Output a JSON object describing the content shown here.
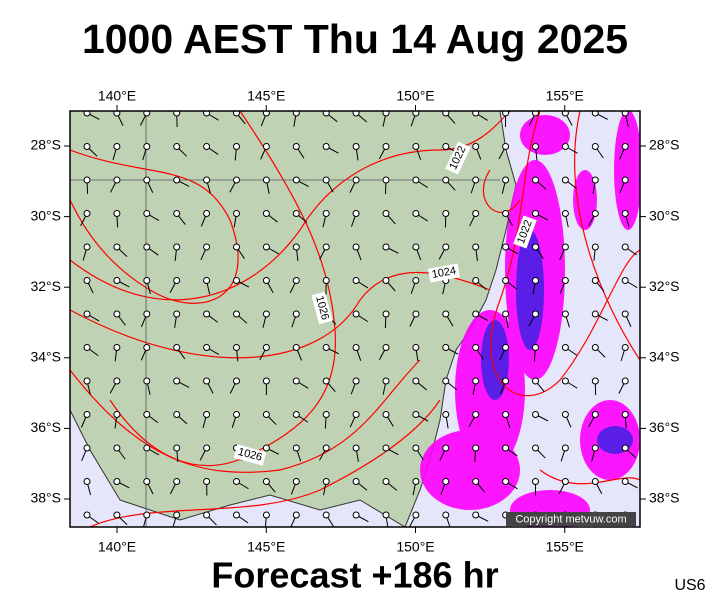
{
  "map": {
    "title": "1000 AEST Thu 14 Aug 2025",
    "lon_ticks": [
      {
        "value": 140,
        "label": "140°E"
      },
      {
        "value": 145,
        "label": "145°E"
      },
      {
        "value": 150,
        "label": "150°E"
      },
      {
        "value": 155,
        "label": "155°E"
      }
    ],
    "lat_ticks": [
      {
        "value": -28,
        "label": "28°S"
      },
      {
        "value": -30,
        "label": "30°S"
      },
      {
        "value": -32,
        "label": "32°S"
      },
      {
        "value": -34,
        "label": "34°S"
      },
      {
        "value": -36,
        "label": "36°S"
      },
      {
        "value": -38,
        "label": "38°S"
      }
    ],
    "isobar_labels": [
      "1022",
      "1022",
      "1024",
      "1026",
      "1026"
    ],
    "copyright": "Copyright metvuw.com",
    "footer": "Forecast +186 hr",
    "code": "US6"
  }
}
